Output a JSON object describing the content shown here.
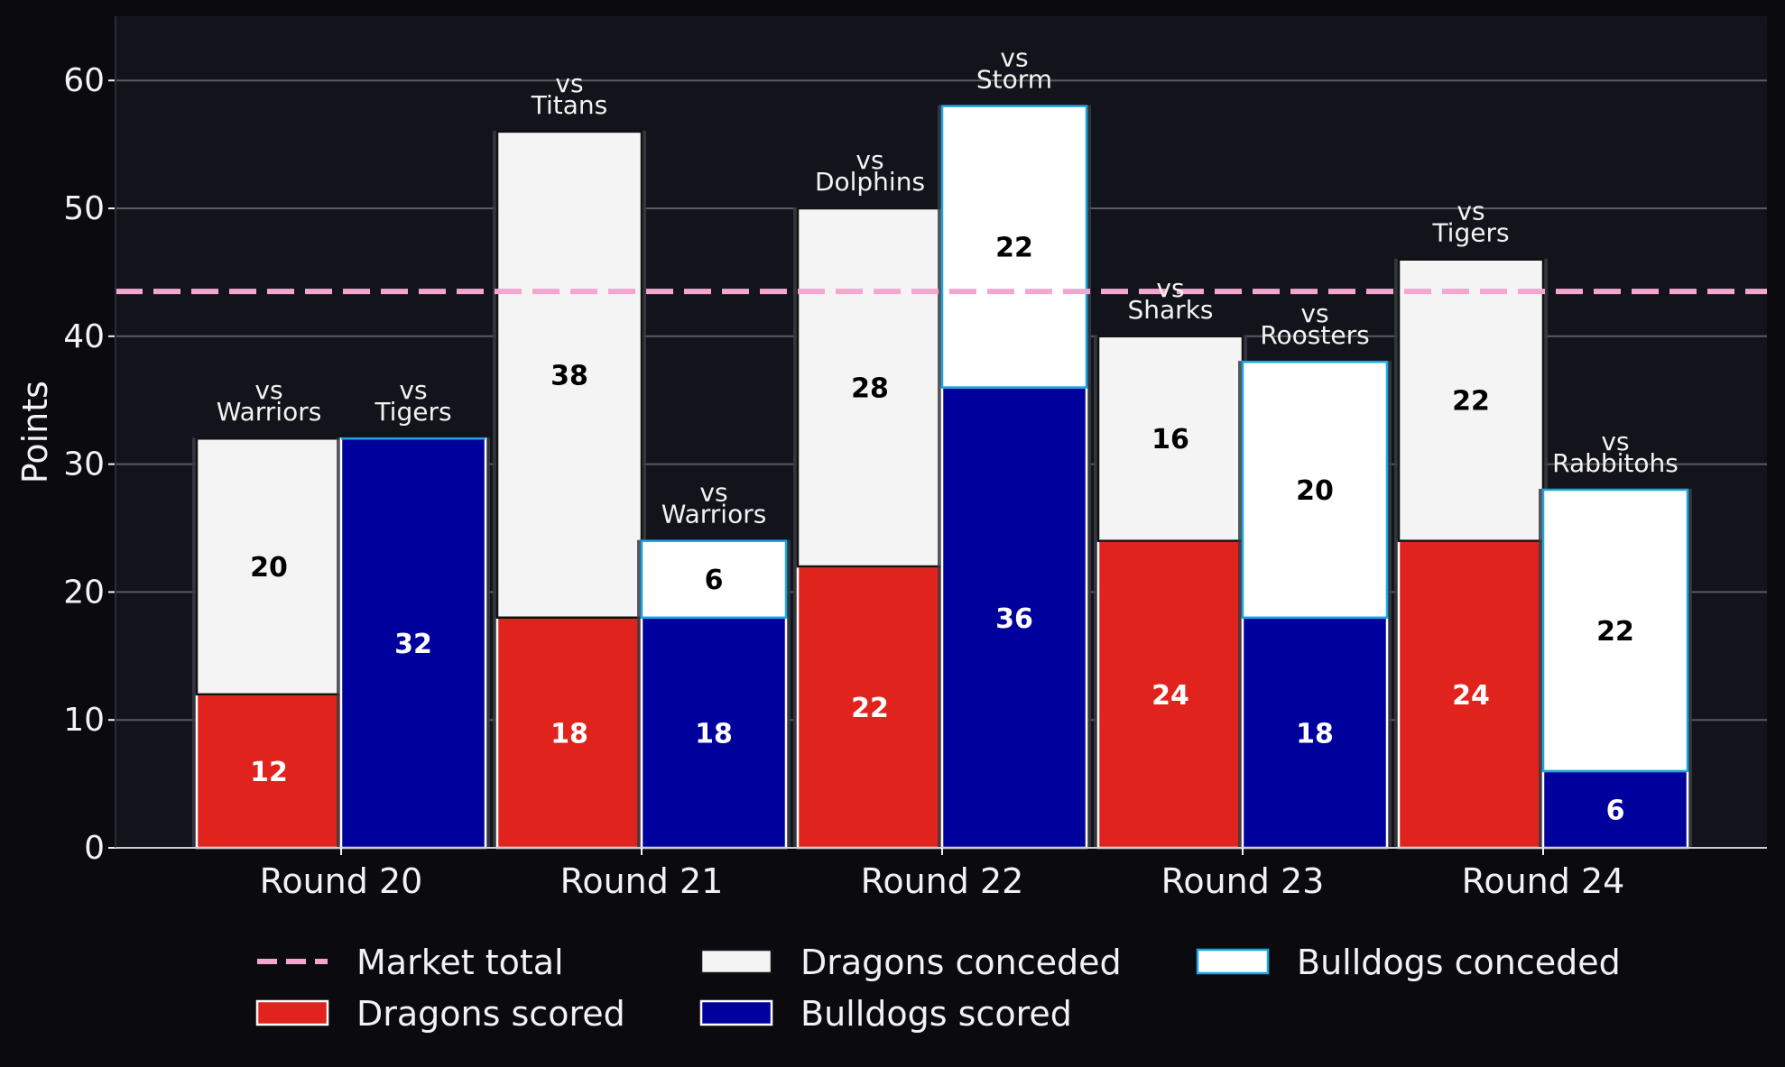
{
  "chart_data": {
    "type": "bar",
    "stacked": true,
    "grouped": true,
    "categories": [
      "Round 20",
      "Round 21",
      "Round 22",
      "Round 23",
      "Round 24"
    ],
    "ylabel": "Points",
    "xlabel": "",
    "ylim": [
      0,
      65
    ],
    "yticks": [
      0,
      10,
      20,
      30,
      40,
      50,
      60
    ],
    "grid": "horizontal",
    "legend_position": "bottom",
    "reference_line": {
      "name": "Market total",
      "value": 43.5,
      "color": "#f4a6d0"
    },
    "opponent_prefix": "vs",
    "teams": [
      {
        "team": "Dragons",
        "opponents": [
          "Warriors",
          "Titans",
          "Dolphins",
          "Sharks",
          "Tigers"
        ],
        "series": [
          {
            "name": "Dragons scored",
            "values": [
              12,
              18,
              22,
              24,
              24
            ],
            "color": "#e0231c",
            "label_color": "#ffffff",
            "edge": "#ffffff"
          },
          {
            "name": "Dragons conceded",
            "values": [
              20,
              38,
              28,
              16,
              22
            ],
            "color": "#f4f4f4",
            "label_color": "#000000",
            "edge": "#111111"
          }
        ]
      },
      {
        "team": "Bulldogs",
        "opponents": [
          "Tigers",
          "Warriors",
          "Storm",
          "Roosters",
          "Rabbitohs"
        ],
        "series": [
          {
            "name": "Bulldogs scored",
            "values": [
              32,
              18,
              36,
              18,
              6
            ],
            "color": "#00009c",
            "label_color": "#ffffff",
            "edge": "#ffffff"
          },
          {
            "name": "Bulldogs conceded",
            "values": [
              0,
              6,
              22,
              20,
              22
            ],
            "color": "#ffffff",
            "label_color": "#000000",
            "edge": "#1aa6e0"
          }
        ]
      }
    ],
    "legend": [
      {
        "label": "Market total",
        "kind": "line",
        "color": "#f4a6d0"
      },
      {
        "label": "Dragons scored",
        "kind": "patch",
        "color": "#e0231c",
        "edge": "#ffffff"
      },
      {
        "label": "Dragons conceded",
        "kind": "patch",
        "color": "#f4f4f4",
        "edge": "#111111"
      },
      {
        "label": "Bulldogs scored",
        "kind": "patch",
        "color": "#00009c",
        "edge": "#ffffff"
      },
      {
        "label": "Bulldogs conceded",
        "kind": "patch",
        "color": "#ffffff",
        "edge": "#1aa6e0"
      }
    ],
    "colors": {
      "page_background": "#0b0b0f",
      "plot_background": "#13141b",
      "grid": "#5a5a60",
      "text": "#f2f2f2"
    }
  }
}
